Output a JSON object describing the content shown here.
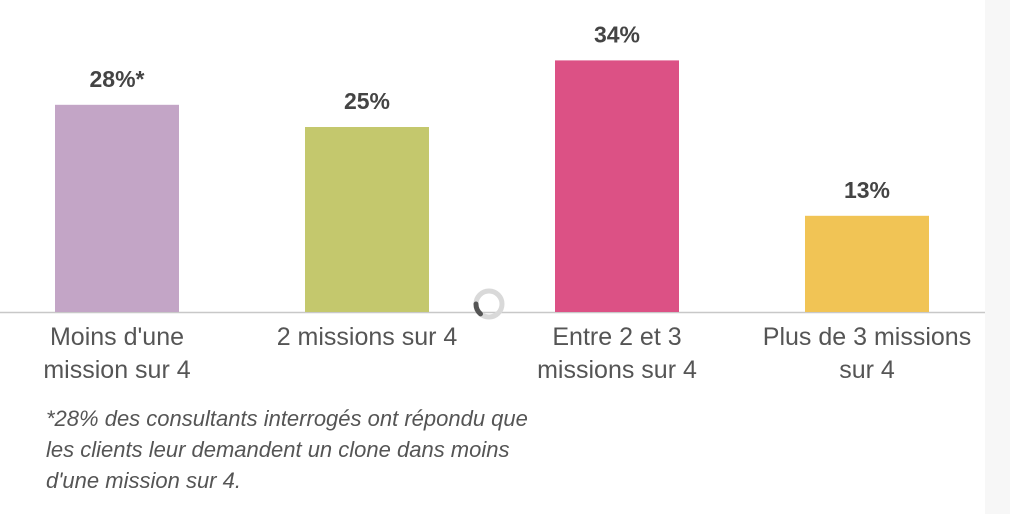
{
  "chart_data": {
    "type": "bar",
    "categories": [
      [
        "Moins d'une",
        "mission sur 4"
      ],
      [
        "2 missions sur 4"
      ],
      [
        "Entre 2 et 3",
        "missions sur 4"
      ],
      [
        "Plus de 3 missions",
        "sur 4"
      ]
    ],
    "values": [
      28,
      25,
      34,
      13
    ],
    "data_labels": [
      "28%*",
      "25%",
      "34%",
      "13%"
    ],
    "colors": [
      "#c3a5c6",
      "#c4c86d",
      "#dc5185",
      "#f1c455"
    ],
    "ylim": [
      0,
      40
    ],
    "grid": false,
    "legend": "none"
  },
  "footnote": "*28% des consultants interrogés ont répondu que\nles clients leur demandent un clone dans moins\nd'une mission sur 4.",
  "loading_indicator": {
    "icon": "loading-spinner-icon"
  },
  "colors": {
    "axis": "#c8c8c8",
    "label_text": "#555555",
    "value_text": "#444444",
    "spinner_track": "#d9d9d9",
    "spinner_arc": "#555555"
  }
}
